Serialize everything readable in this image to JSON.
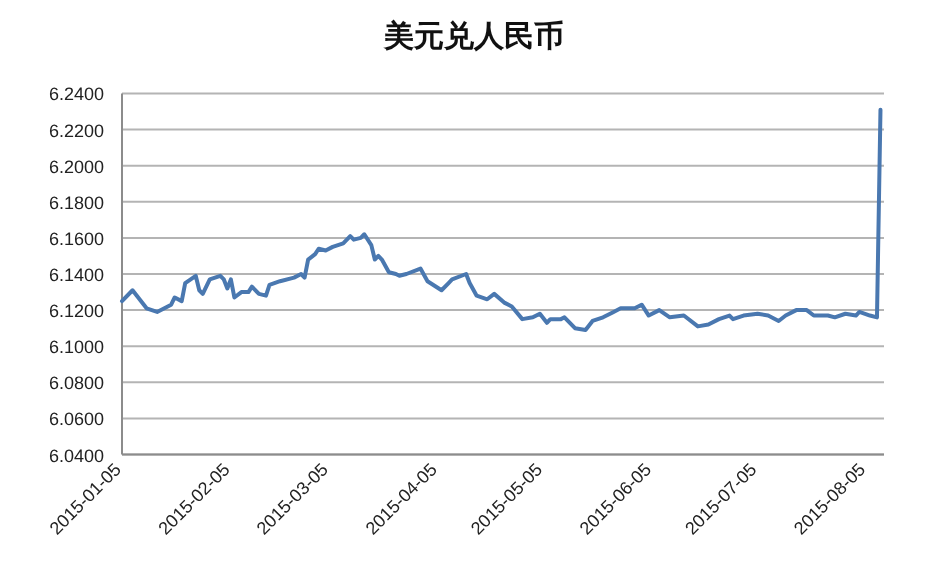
{
  "chart_data": {
    "type": "line",
    "title": "美元兑人民币",
    "x": [
      "2015-01-05",
      "2015-01-08",
      "2015-01-12",
      "2015-01-15",
      "2015-01-19",
      "2015-01-20",
      "2015-01-22",
      "2015-01-23",
      "2015-01-26",
      "2015-01-27",
      "2015-01-28",
      "2015-01-30",
      "2015-02-02",
      "2015-02-03",
      "2015-02-04",
      "2015-02-05",
      "2015-02-06",
      "2015-02-08",
      "2015-02-10",
      "2015-02-11",
      "2015-02-13",
      "2015-02-15",
      "2015-02-16",
      "2015-02-19",
      "2015-02-23",
      "2015-02-25",
      "2015-02-26",
      "2015-02-27",
      "2015-03-01",
      "2015-03-02",
      "2015-03-04",
      "2015-03-06",
      "2015-03-09",
      "2015-03-11",
      "2015-03-12",
      "2015-03-14",
      "2015-03-15",
      "2015-03-17",
      "2015-03-18",
      "2015-03-19",
      "2015-03-20",
      "2015-03-22",
      "2015-03-24",
      "2015-03-25",
      "2015-03-27",
      "2015-03-31",
      "2015-04-02",
      "2015-04-06",
      "2015-04-08",
      "2015-04-09",
      "2015-04-13",
      "2015-04-14",
      "2015-04-16",
      "2015-04-19",
      "2015-04-21",
      "2015-04-24",
      "2015-04-26",
      "2015-04-29",
      "2015-05-02",
      "2015-05-04",
      "2015-05-06",
      "2015-05-07",
      "2015-05-10",
      "2015-05-11",
      "2015-05-14",
      "2015-05-17",
      "2015-05-19",
      "2015-05-22",
      "2015-05-25",
      "2015-05-27",
      "2015-05-31",
      "2015-06-02",
      "2015-06-04",
      "2015-06-07",
      "2015-06-10",
      "2015-06-14",
      "2015-06-18",
      "2015-06-21",
      "2015-06-24",
      "2015-06-27",
      "2015-06-28",
      "2015-07-01",
      "2015-07-05",
      "2015-07-08",
      "2015-07-11",
      "2015-07-13",
      "2015-07-16",
      "2015-07-19",
      "2015-07-21",
      "2015-07-25",
      "2015-07-27",
      "2015-07-30",
      "2015-08-02",
      "2015-08-03",
      "2015-08-06",
      "2015-08-08",
      "2015-08-09"
    ],
    "series": [
      {
        "color": "#4a78b0",
        "values": [
          6.125,
          6.131,
          6.121,
          6.119,
          6.123,
          6.127,
          6.125,
          6.135,
          6.139,
          6.131,
          6.129,
          6.137,
          6.139,
          6.137,
          6.132,
          6.137,
          6.127,
          6.13,
          6.13,
          6.133,
          6.129,
          6.128,
          6.134,
          6.136,
          6.138,
          6.14,
          6.138,
          6.148,
          6.151,
          6.154,
          6.153,
          6.155,
          6.157,
          6.161,
          6.159,
          6.16,
          6.162,
          6.156,
          6.148,
          6.15,
          6.148,
          6.141,
          6.14,
          6.139,
          6.14,
          6.143,
          6.136,
          6.131,
          6.135,
          6.137,
          6.14,
          6.135,
          6.128,
          6.126,
          6.129,
          6.124,
          6.122,
          6.115,
          6.116,
          6.118,
          6.113,
          6.115,
          6.115,
          6.116,
          6.11,
          6.109,
          6.114,
          6.116,
          6.119,
          6.121,
          6.121,
          6.123,
          6.117,
          6.12,
          6.116,
          6.117,
          6.111,
          6.112,
          6.115,
          6.117,
          6.115,
          6.117,
          6.118,
          6.117,
          6.114,
          6.117,
          6.12,
          6.12,
          6.117,
          6.117,
          6.116,
          6.118,
          6.117,
          6.119,
          6.117,
          6.116,
          6.231
        ]
      }
    ],
    "xlim": [
      "2015-01-05",
      "2015-08-10"
    ],
    "xticks": [
      {
        "value": "2015-01-05",
        "label": "2015-01-05"
      },
      {
        "value": "2015-02-05",
        "label": "2015-02-05"
      },
      {
        "value": "2015-03-05",
        "label": "2015-03-05"
      },
      {
        "value": "2015-04-05",
        "label": "2015-04-05"
      },
      {
        "value": "2015-05-05",
        "label": "2015-05-05"
      },
      {
        "value": "2015-06-05",
        "label": "2015-06-05"
      },
      {
        "value": "2015-07-05",
        "label": "2015-07-05"
      },
      {
        "value": "2015-08-05",
        "label": "2015-08-05"
      }
    ],
    "ylim": [
      6.04,
      6.24
    ],
    "yticks": [
      {
        "value": 6.04,
        "label": "6.0400"
      },
      {
        "value": 6.06,
        "label": "6.0600"
      },
      {
        "value": 6.08,
        "label": "6.0800"
      },
      {
        "value": 6.1,
        "label": "6.1000"
      },
      {
        "value": 6.12,
        "label": "6.1200"
      },
      {
        "value": 6.14,
        "label": "6.1400"
      },
      {
        "value": 6.16,
        "label": "6.1600"
      },
      {
        "value": 6.18,
        "label": "6.1800"
      },
      {
        "value": 6.2,
        "label": "6.2000"
      },
      {
        "value": 6.22,
        "label": "6.2200"
      },
      {
        "value": 6.24,
        "label": "6.2400"
      }
    ],
    "grid": "y",
    "marker": "none",
    "line_style": "solid"
  }
}
